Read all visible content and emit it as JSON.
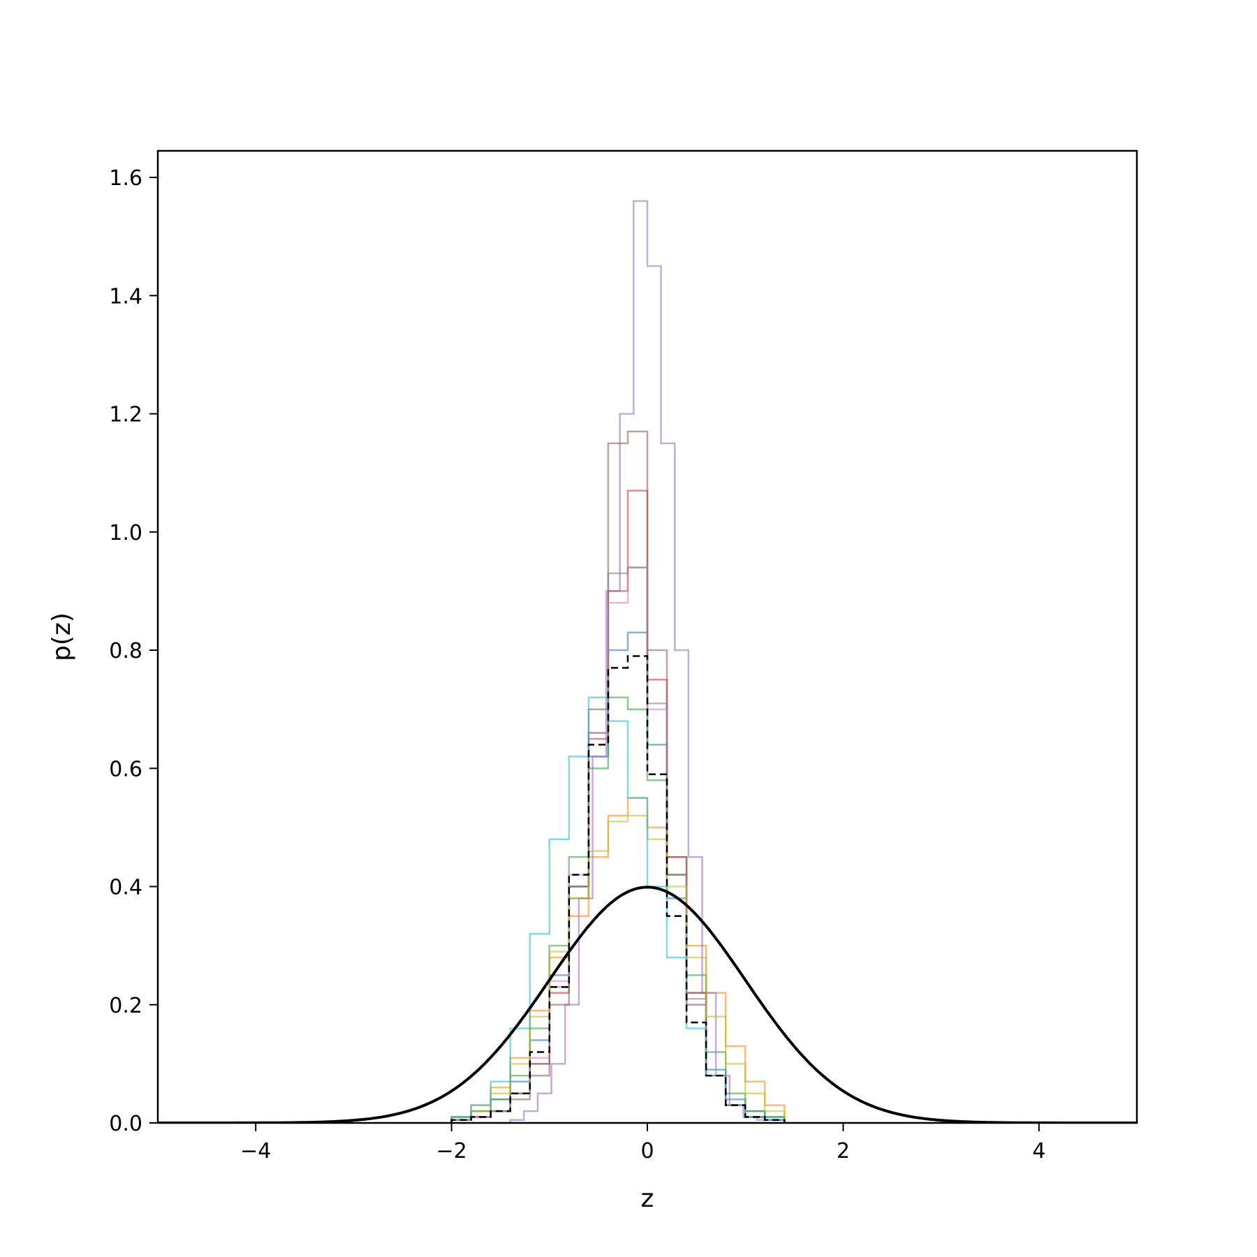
{
  "chart_data": {
    "type": "histogram",
    "xlabel": "z",
    "ylabel": "p(z)",
    "xlim": [
      -5,
      5
    ],
    "ylim": [
      0,
      1.645
    ],
    "xticks": [
      "−4",
      "−2",
      "0",
      "2",
      "4"
    ],
    "xtick_values": [
      -4,
      -2,
      0,
      2,
      4
    ],
    "yticks": [
      "0.0",
      "0.2",
      "0.4",
      "0.6",
      "0.8",
      "1.0",
      "1.2",
      "1.4",
      "1.6"
    ],
    "ytick_values": [
      0,
      0.2,
      0.4,
      0.6,
      0.8,
      1.0,
      1.2,
      1.4,
      1.6
    ],
    "grid": false,
    "legend": "none",
    "reference_curve": {
      "description_in_image": "standard normal density",
      "mean": 0,
      "std": 1,
      "peak": 0.399,
      "color": "#000000",
      "style": "solid"
    },
    "pooled_histogram": {
      "color": "#000000",
      "style": "dashed",
      "bin_width": 0.2,
      "bins_start": -2.0,
      "values": [
        0.005,
        0.01,
        0.02,
        0.05,
        0.12,
        0.23,
        0.42,
        0.64,
        0.77,
        0.79,
        0.59,
        0.35,
        0.17,
        0.08,
        0.03,
        0.01,
        0.005
      ]
    },
    "sample_histograms": [
      {
        "color": "#1f77b4",
        "bin_width": 0.2,
        "bins_start": -2.0,
        "values": [
          0.01,
          0.02,
          0.04,
          0.07,
          0.14,
          0.25,
          0.4,
          0.62,
          0.8,
          0.83,
          0.64,
          0.38,
          0.2,
          0.09,
          0.04,
          0.02,
          0.01
        ]
      },
      {
        "color": "#ff7f0e",
        "bin_width": 0.2,
        "bins_start": -2.0,
        "values": [
          0.01,
          0.03,
          0.06,
          0.11,
          0.19,
          0.28,
          0.35,
          0.45,
          0.52,
          0.55,
          0.5,
          0.42,
          0.3,
          0.22,
          0.13,
          0.07,
          0.03
        ]
      },
      {
        "color": "#2ca02c",
        "bin_width": 0.2,
        "bins_start": -2.0,
        "values": [
          0.01,
          0.02,
          0.04,
          0.08,
          0.16,
          0.3,
          0.45,
          0.6,
          0.72,
          0.7,
          0.58,
          0.42,
          0.25,
          0.12,
          0.05,
          0.02,
          0.01
        ]
      },
      {
        "color": "#d62728",
        "bin_width": 0.2,
        "bins_start": -2.0,
        "values": [
          0.005,
          0.01,
          0.02,
          0.05,
          0.1,
          0.22,
          0.4,
          0.65,
          0.9,
          1.07,
          0.75,
          0.45,
          0.22,
          0.08,
          0.03,
          0.01,
          0.005
        ]
      },
      {
        "color": "#9467bd",
        "bin_width": 0.14,
        "bins_start": -1.4,
        "values": [
          0.005,
          0.02,
          0.05,
          0.1,
          0.2,
          0.38,
          0.62,
          0.9,
          1.2,
          1.56,
          1.45,
          1.15,
          0.8,
          0.45,
          0.22,
          0.08,
          0.03,
          0.01,
          0.005,
          0.005
        ]
      },
      {
        "color": "#8c564b",
        "bin_width": 0.2,
        "bins_start": -2.0,
        "values": [
          0.005,
          0.01,
          0.02,
          0.04,
          0.08,
          0.2,
          0.38,
          0.7,
          1.15,
          1.17,
          0.8,
          0.45,
          0.22,
          0.08,
          0.03,
          0.01,
          0.005
        ]
      },
      {
        "color": "#e377c2",
        "bin_width": 0.2,
        "bins_start": -2.0,
        "values": [
          0.005,
          0.01,
          0.02,
          0.05,
          0.11,
          0.24,
          0.42,
          0.66,
          0.88,
          0.94,
          0.7,
          0.42,
          0.2,
          0.08,
          0.03,
          0.01,
          0.005
        ]
      },
      {
        "color": "#7f7f7f",
        "bin_width": 0.2,
        "bins_start": -2.0,
        "values": [
          0.005,
          0.01,
          0.02,
          0.05,
          0.1,
          0.23,
          0.4,
          0.66,
          0.93,
          0.94,
          0.71,
          0.42,
          0.21,
          0.08,
          0.03,
          0.01,
          0.005
        ]
      },
      {
        "color": "#bcbd22",
        "bin_width": 0.2,
        "bins_start": -2.0,
        "values": [
          0.01,
          0.02,
          0.05,
          0.1,
          0.18,
          0.29,
          0.38,
          0.46,
          0.51,
          0.52,
          0.48,
          0.4,
          0.28,
          0.18,
          0.1,
          0.05,
          0.02
        ]
      },
      {
        "color": "#17becf",
        "bin_width": 0.2,
        "bins_start": -2.0,
        "values": [
          0.01,
          0.03,
          0.07,
          0.16,
          0.32,
          0.48,
          0.62,
          0.72,
          0.68,
          0.55,
          0.4,
          0.28,
          0.16,
          0.08,
          0.03,
          0.01,
          0.005
        ]
      }
    ]
  }
}
